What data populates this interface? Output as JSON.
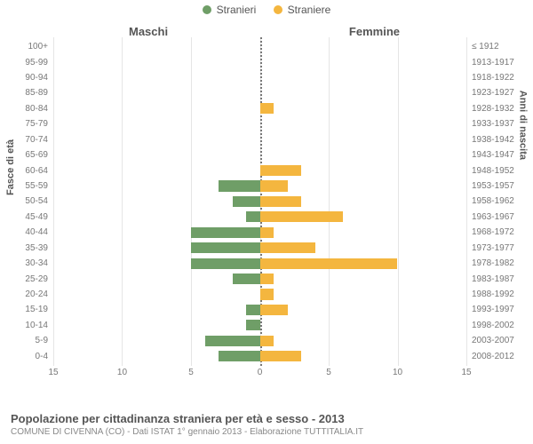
{
  "chart": {
    "type": "population-pyramid",
    "legend": {
      "male": {
        "label": "Stranieri",
        "color": "#6f9e67"
      },
      "female": {
        "label": "Straniere",
        "color": "#f4b63f"
      }
    },
    "side_labels": {
      "left": "Maschi",
      "right": "Femmine"
    },
    "axis_titles": {
      "left": "Fasce di età",
      "right": "Anni di nascita"
    },
    "x_domain_half": 15,
    "x_ticks": [
      15,
      10,
      5,
      0,
      5,
      10,
      15
    ],
    "grid_color": "#e5e5e5",
    "center_line_color": "#777777",
    "background_color": "#ffffff",
    "tick_font_color": "#777777",
    "rows": [
      {
        "age": "100+",
        "birth": "≤ 1912",
        "m": 0,
        "f": 0
      },
      {
        "age": "95-99",
        "birth": "1913-1917",
        "m": 0,
        "f": 0
      },
      {
        "age": "90-94",
        "birth": "1918-1922",
        "m": 0,
        "f": 0
      },
      {
        "age": "85-89",
        "birth": "1923-1927",
        "m": 0,
        "f": 0
      },
      {
        "age": "80-84",
        "birth": "1928-1932",
        "m": 0,
        "f": 1
      },
      {
        "age": "75-79",
        "birth": "1933-1937",
        "m": 0,
        "f": 0
      },
      {
        "age": "70-74",
        "birth": "1938-1942",
        "m": 0,
        "f": 0
      },
      {
        "age": "65-69",
        "birth": "1943-1947",
        "m": 0,
        "f": 0
      },
      {
        "age": "60-64",
        "birth": "1948-1952",
        "m": 0,
        "f": 3
      },
      {
        "age": "55-59",
        "birth": "1953-1957",
        "m": 3,
        "f": 2
      },
      {
        "age": "50-54",
        "birth": "1958-1962",
        "m": 2,
        "f": 3
      },
      {
        "age": "45-49",
        "birth": "1963-1967",
        "m": 1,
        "f": 6
      },
      {
        "age": "40-44",
        "birth": "1968-1972",
        "m": 5,
        "f": 1
      },
      {
        "age": "35-39",
        "birth": "1973-1977",
        "m": 5,
        "f": 4
      },
      {
        "age": "30-34",
        "birth": "1978-1982",
        "m": 5,
        "f": 10
      },
      {
        "age": "25-29",
        "birth": "1983-1987",
        "m": 2,
        "f": 1
      },
      {
        "age": "20-24",
        "birth": "1988-1992",
        "m": 0,
        "f": 1
      },
      {
        "age": "15-19",
        "birth": "1993-1997",
        "m": 1,
        "f": 2
      },
      {
        "age": "10-14",
        "birth": "1998-2002",
        "m": 1,
        "f": 0
      },
      {
        "age": "5-9",
        "birth": "2003-2007",
        "m": 4,
        "f": 1
      },
      {
        "age": "0-4",
        "birth": "2008-2012",
        "m": 3,
        "f": 3
      }
    ]
  },
  "caption": {
    "title": "Popolazione per cittadinanza straniera per età e sesso - 2013",
    "sub": "COMUNE DI CIVENNA (CO) - Dati ISTAT 1° gennaio 2013 - Elaborazione TUTTITALIA.IT"
  }
}
